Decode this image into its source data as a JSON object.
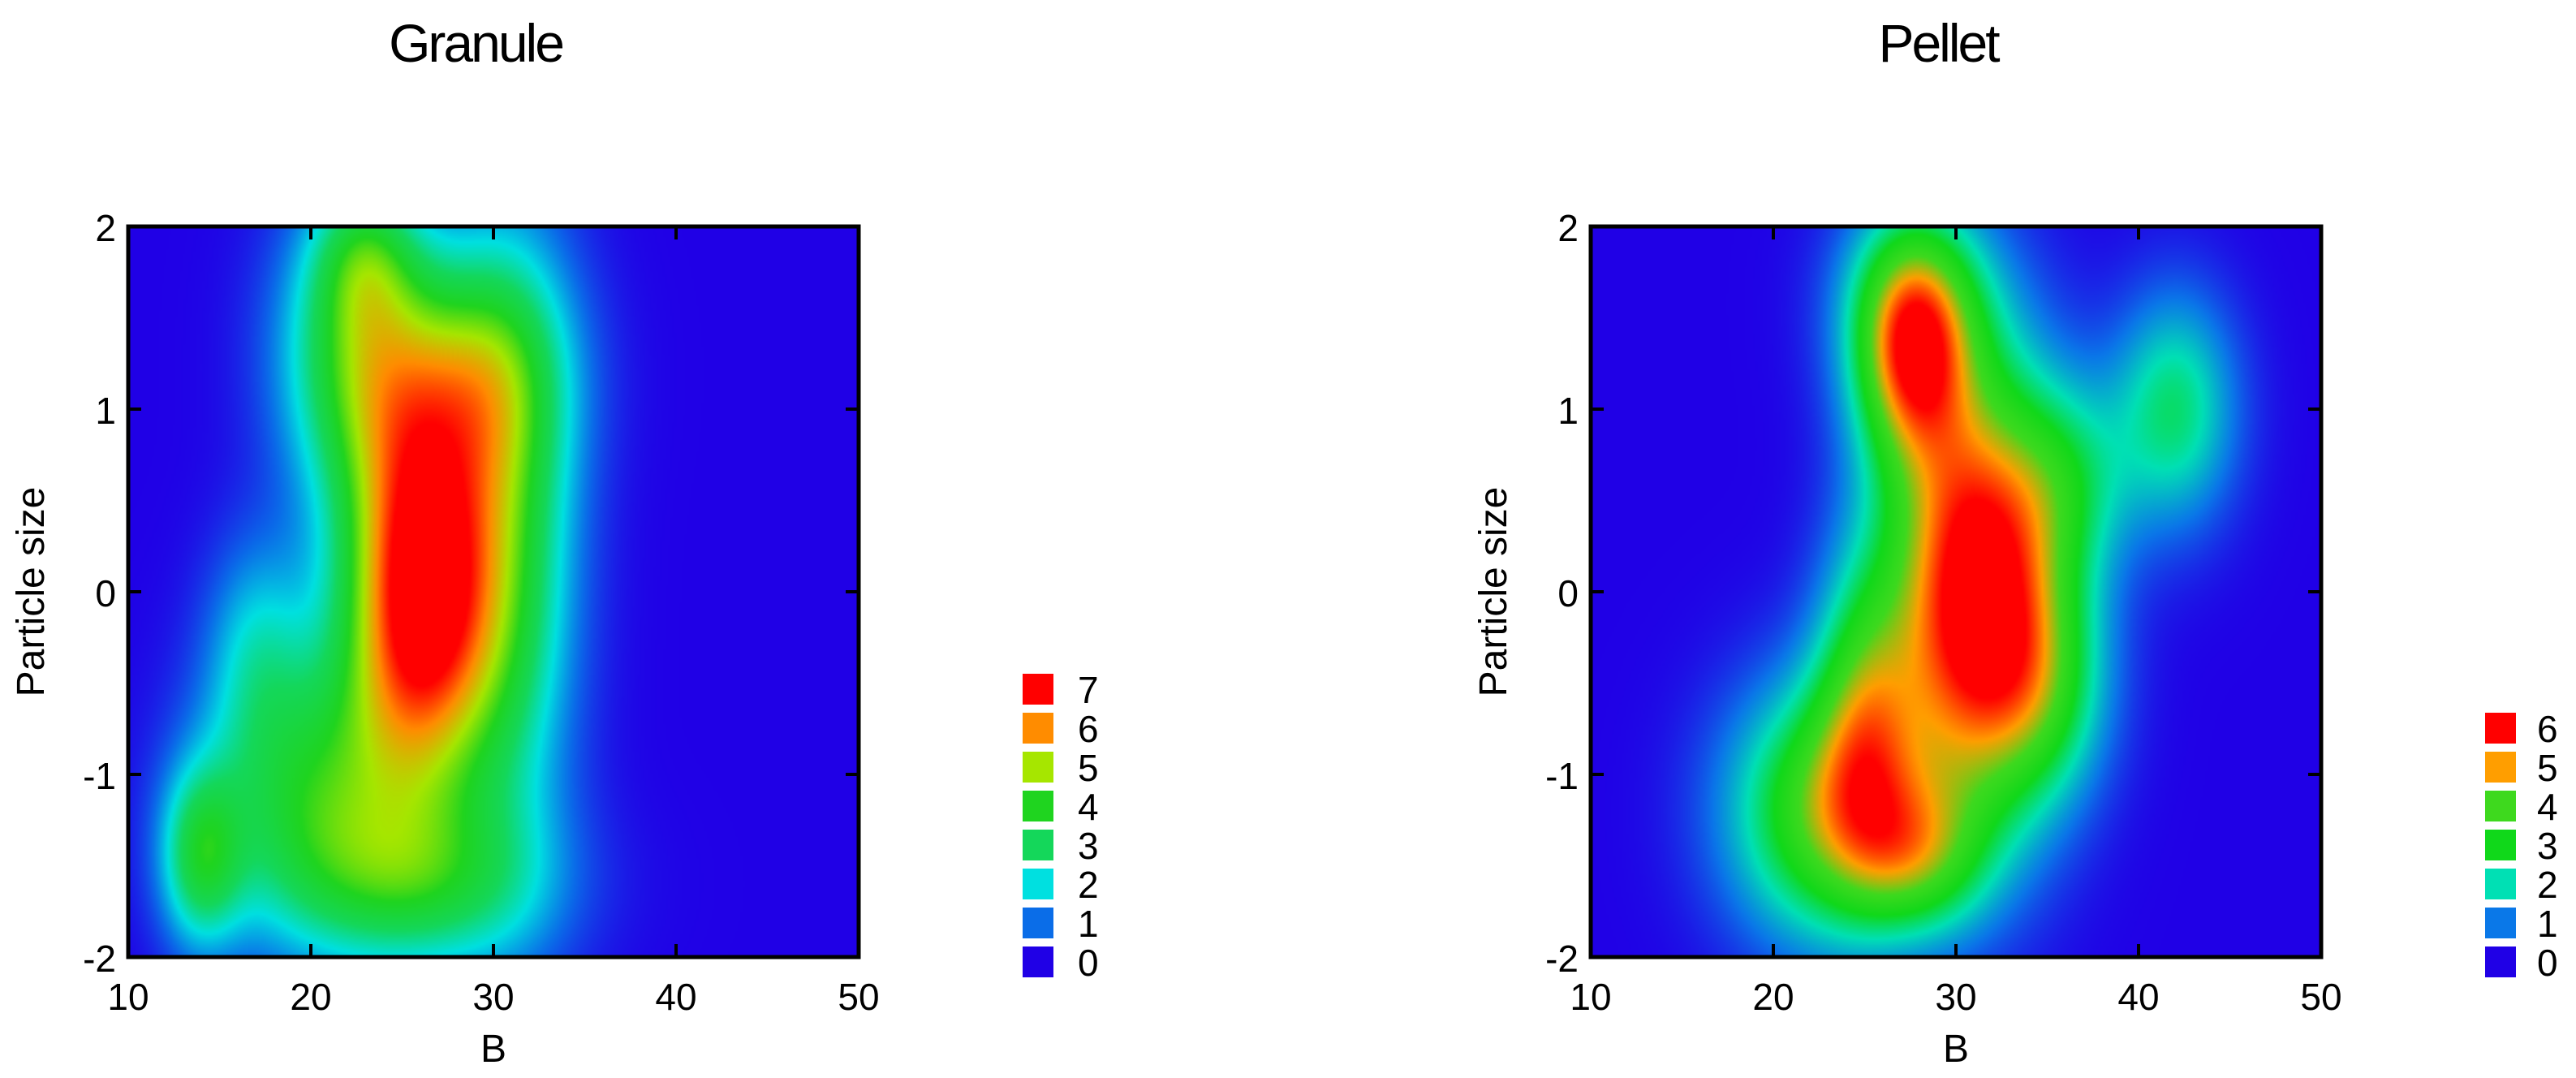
{
  "chart_data": [
    {
      "type": "heatmap",
      "title": "Granule",
      "xlabel": "B",
      "ylabel": "Particle size",
      "xlim": [
        10,
        50
      ],
      "ylim": [
        -2,
        2
      ],
      "x_ticks": [
        "10",
        "20",
        "30",
        "40",
        "50"
      ],
      "y_ticks": [
        "2",
        "1",
        "0",
        "-1",
        "-2"
      ],
      "legend": {
        "levels": [
          "7",
          "6",
          "5",
          "4",
          "3",
          "2",
          "1",
          "0"
        ],
        "colors": [
          "#ff0000",
          "#ff8c00",
          "#a6e600",
          "#1fd41f",
          "#14d75a",
          "#00e0e0",
          "#0a6de8",
          "#2000e6"
        ],
        "placement": "right"
      },
      "peaks": [
        {
          "x": 26,
          "y": 0.0,
          "sx": 3.0,
          "sy": 0.78,
          "amp": 7.5
        },
        {
          "x": 22.5,
          "y": 1.3,
          "sx": 3.0,
          "sy": 0.55,
          "amp": 3.4
        },
        {
          "x": 29,
          "y": 1.2,
          "sx": 3.5,
          "sy": 0.45,
          "amp": 2.6
        },
        {
          "x": 31,
          "y": 0.3,
          "sx": 2.6,
          "sy": 1.2,
          "amp": 2.8
        },
        {
          "x": 20,
          "y": -1.1,
          "sx": 4.0,
          "sy": 0.55,
          "amp": 3.2
        },
        {
          "x": 14,
          "y": -1.45,
          "sx": 1.6,
          "sy": 0.35,
          "amp": 3.0
        },
        {
          "x": 26,
          "y": -1.6,
          "sx": 5.0,
          "sy": 0.35,
          "amp": 2.6
        },
        {
          "x": 17,
          "y": -0.3,
          "sx": 2.0,
          "sy": 0.45,
          "amp": 1.5
        },
        {
          "x": 23,
          "y": 1.85,
          "sx": 2.0,
          "sy": 0.3,
          "amp": 2.0
        }
      ]
    },
    {
      "type": "heatmap",
      "title": "Pellet",
      "xlabel": "B",
      "ylabel": "Particle size",
      "xlim": [
        10,
        50
      ],
      "ylim": [
        -2,
        2
      ],
      "x_ticks": [
        "10",
        "20",
        "30",
        "40",
        "50"
      ],
      "y_ticks": [
        "2",
        "1",
        "0",
        "-1",
        "-2"
      ],
      "legend": {
        "levels": [
          "6",
          "5",
          "4",
          "3",
          "2",
          "1",
          "0"
        ],
        "colors": [
          "#ff0000",
          "#ff9e00",
          "#3ed91e",
          "#10d81a",
          "#00e0b4",
          "#0a78e8",
          "#2000e6"
        ],
        "placement": "right"
      },
      "peaks": [
        {
          "x": 31,
          "y": 0.0,
          "sx": 3.3,
          "sy": 0.85,
          "amp": 6.5
        },
        {
          "x": 27.5,
          "y": 1.3,
          "sx": 2.2,
          "sy": 0.45,
          "amp": 4.0
        },
        {
          "x": 28,
          "y": 1.6,
          "sx": 3.0,
          "sy": 0.4,
          "amp": 2.0
        },
        {
          "x": 23,
          "y": -1.2,
          "sx": 3.8,
          "sy": 0.5,
          "amp": 3.9
        },
        {
          "x": 28,
          "y": -1.45,
          "sx": 2.6,
          "sy": 0.3,
          "amp": 2.3
        },
        {
          "x": 25,
          "y": -0.6,
          "sx": 2.0,
          "sy": 0.6,
          "amp": 2.5
        },
        {
          "x": 42,
          "y": 1.0,
          "sx": 2.4,
          "sy": 0.45,
          "amp": 2.4
        },
        {
          "x": 36,
          "y": 0.6,
          "sx": 2.5,
          "sy": 0.4,
          "amp": 1.8
        },
        {
          "x": 35,
          "y": -0.5,
          "sx": 2.5,
          "sy": 0.45,
          "amp": 2.0
        }
      ]
    }
  ]
}
